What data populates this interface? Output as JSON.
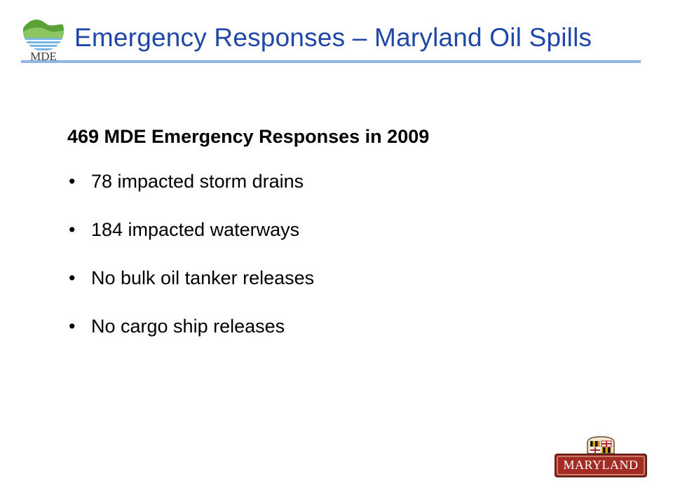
{
  "slide": {
    "title": "Emergency Responses – Maryland Oil Spills",
    "headline": "469 MDE Emergency Responses in 2009",
    "bullet_symbol": "•",
    "bullets": [
      "78 impacted storm drains",
      "184 impacted waterways",
      "No bulk oil tanker releases",
      "No cargo ship releases"
    ]
  },
  "logos": {
    "agency_logo_text": "MDE",
    "state_logo_text": "MARYLAND",
    "agency_icon": "mde-hills-water-icon",
    "state_icon": "maryland-flag-crest-icon"
  },
  "colors": {
    "title": "#1f47a8",
    "rule": "#8fb5e6",
    "body_text": "#000000",
    "md_badge": "#a32b25",
    "mde_green": "#6fb33f",
    "mde_blue": "#7ab6e1"
  }
}
